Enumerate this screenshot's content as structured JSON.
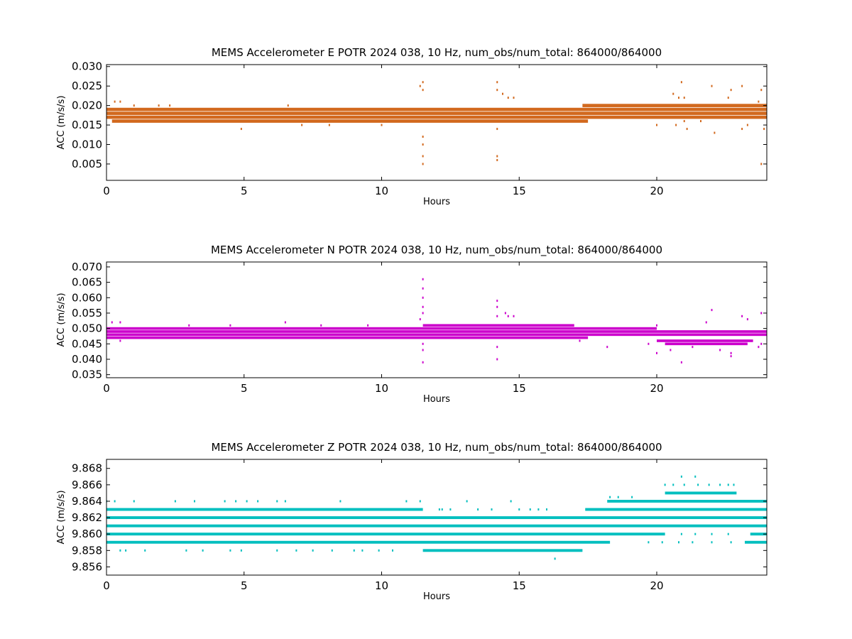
{
  "chart_data": [
    {
      "type": "scatter",
      "title": "MEMS Accelerometer E POTR 2024 038, 10 Hz, num_obs/num_total: 864000/864000",
      "xlabel": "Hours",
      "ylabel": "ACC (m/s/s)",
      "color": "#d2691e",
      "xlim": [
        0,
        24
      ],
      "ylim": [
        0.0008,
        0.0305
      ],
      "xticks": [
        0,
        5,
        10,
        15,
        20
      ],
      "yticks": [
        0.005,
        0.01,
        0.015,
        0.02,
        0.025,
        0.03
      ],
      "ytick_labels": [
        "0.005",
        "0.010",
        "0.015",
        "0.020",
        "0.025",
        "0.030"
      ],
      "grid": false,
      "bands": [
        {
          "y": 0.016,
          "x": [
            0.2,
            17.5
          ]
        },
        {
          "y": 0.017,
          "x": [
            0.0,
            24.0
          ]
        },
        {
          "y": 0.018,
          "x": [
            0.0,
            24.0
          ]
        },
        {
          "y": 0.019,
          "x": [
            0.0,
            24.0
          ]
        },
        {
          "y": 0.02,
          "x": [
            17.3,
            24.0
          ]
        }
      ],
      "points": [
        [
          0.3,
          0.021
        ],
        [
          0.5,
          0.021
        ],
        [
          1.0,
          0.02
        ],
        [
          1.9,
          0.02
        ],
        [
          2.3,
          0.02
        ],
        [
          4.9,
          0.014
        ],
        [
          6.6,
          0.02
        ],
        [
          7.1,
          0.015
        ],
        [
          8.1,
          0.015
        ],
        [
          10.0,
          0.015
        ],
        [
          11.4,
          0.025
        ],
        [
          11.5,
          0.026
        ],
        [
          11.5,
          0.024
        ],
        [
          11.5,
          0.012
        ],
        [
          11.5,
          0.01
        ],
        [
          11.5,
          0.007
        ],
        [
          11.5,
          0.005
        ],
        [
          14.2,
          0.026
        ],
        [
          14.2,
          0.024
        ],
        [
          14.2,
          0.014
        ],
        [
          14.2,
          0.007
        ],
        [
          14.2,
          0.006
        ],
        [
          14.4,
          0.023
        ],
        [
          14.6,
          0.022
        ],
        [
          14.8,
          0.022
        ],
        [
          20.6,
          0.023
        ],
        [
          20.8,
          0.022
        ],
        [
          20.9,
          0.026
        ],
        [
          21.0,
          0.022
        ],
        [
          21.0,
          0.016
        ],
        [
          21.1,
          0.014
        ],
        [
          21.6,
          0.016
        ],
        [
          22.0,
          0.025
        ],
        [
          22.1,
          0.013
        ],
        [
          22.6,
          0.022
        ],
        [
          22.7,
          0.024
        ],
        [
          23.1,
          0.025
        ],
        [
          23.1,
          0.014
        ],
        [
          23.7,
          0.021
        ],
        [
          23.8,
          0.024
        ],
        [
          23.8,
          0.005
        ],
        [
          23.9,
          0.014
        ],
        [
          20.0,
          0.015
        ],
        [
          20.7,
          0.015
        ],
        [
          23.3,
          0.015
        ]
      ]
    },
    {
      "type": "scatter",
      "title": "MEMS Accelerometer N POTR 2024 038, 10 Hz, num_obs/num_total: 864000/864000",
      "xlabel": "Hours",
      "ylabel": "ACC (m/s/s)",
      "color": "#cc00cc",
      "xlim": [
        0,
        24
      ],
      "ylim": [
        0.034,
        0.0716
      ],
      "xticks": [
        0,
        5,
        10,
        15,
        20
      ],
      "yticks": [
        0.035,
        0.04,
        0.045,
        0.05,
        0.055,
        0.06,
        0.065,
        0.07
      ],
      "ytick_labels": [
        "0.035",
        "0.040",
        "0.045",
        "0.050",
        "0.055",
        "0.060",
        "0.065",
        "0.070"
      ],
      "grid": false,
      "bands": [
        {
          "y": 0.047,
          "x": [
            0.0,
            17.5
          ]
        },
        {
          "y": 0.048,
          "x": [
            0.0,
            24.0
          ]
        },
        {
          "y": 0.049,
          "x": [
            0.0,
            24.0
          ]
        },
        {
          "y": 0.05,
          "x": [
            0.0,
            20.0
          ]
        },
        {
          "y": 0.051,
          "x": [
            11.5,
            17.0
          ]
        },
        {
          "y": 0.046,
          "x": [
            20.0,
            23.5
          ]
        },
        {
          "y": 0.045,
          "x": [
            20.3,
            23.3
          ]
        }
      ],
      "points": [
        [
          0.2,
          0.052
        ],
        [
          0.5,
          0.052
        ],
        [
          0.5,
          0.046
        ],
        [
          3.0,
          0.051
        ],
        [
          4.5,
          0.051
        ],
        [
          6.5,
          0.052
        ],
        [
          7.8,
          0.051
        ],
        [
          9.5,
          0.051
        ],
        [
          11.5,
          0.066
        ],
        [
          11.5,
          0.063
        ],
        [
          11.5,
          0.06
        ],
        [
          11.5,
          0.057
        ],
        [
          11.5,
          0.055
        ],
        [
          11.5,
          0.045
        ],
        [
          11.5,
          0.043
        ],
        [
          11.5,
          0.039
        ],
        [
          11.4,
          0.053
        ],
        [
          14.2,
          0.059
        ],
        [
          14.2,
          0.057
        ],
        [
          14.2,
          0.054
        ],
        [
          14.2,
          0.044
        ],
        [
          14.2,
          0.04
        ],
        [
          14.5,
          0.055
        ],
        [
          14.6,
          0.054
        ],
        [
          14.8,
          0.054
        ],
        [
          18.2,
          0.044
        ],
        [
          19.7,
          0.045
        ],
        [
          20.0,
          0.042
        ],
        [
          20.0,
          0.051
        ],
        [
          20.5,
          0.043
        ],
        [
          20.9,
          0.039
        ],
        [
          21.3,
          0.044
        ],
        [
          21.8,
          0.052
        ],
        [
          22.0,
          0.056
        ],
        [
          22.3,
          0.043
        ],
        [
          22.7,
          0.042
        ],
        [
          22.7,
          0.041
        ],
        [
          23.1,
          0.054
        ],
        [
          23.3,
          0.053
        ],
        [
          23.8,
          0.055
        ],
        [
          23.8,
          0.045
        ],
        [
          23.7,
          0.044
        ],
        [
          17.2,
          0.046
        ]
      ]
    },
    {
      "type": "scatter",
      "title": "MEMS Accelerometer Z POTR 2024 038, 10 Hz, num_obs/num_total: 864000/864000",
      "xlabel": "Hours",
      "ylabel": "ACC (m/s/s)",
      "color": "#00bfbf",
      "xlim": [
        0,
        24
      ],
      "ylim": [
        9.855,
        9.8691
      ],
      "xticks": [
        0,
        5,
        10,
        15,
        20
      ],
      "yticks": [
        9.856,
        9.858,
        9.86,
        9.862,
        9.864,
        9.866,
        9.868
      ],
      "ytick_labels": [
        "9.856",
        "9.858",
        "9.860",
        "9.862",
        "9.864",
        "9.866",
        "9.868"
      ],
      "grid": false,
      "bands": [
        {
          "y": 9.859,
          "x": [
            0.0,
            18.3
          ]
        },
        {
          "y": 9.86,
          "x": [
            0.0,
            20.3
          ]
        },
        {
          "y": 9.861,
          "x": [
            0.0,
            24.0
          ]
        },
        {
          "y": 9.862,
          "x": [
            0.0,
            24.0
          ]
        },
        {
          "y": 9.863,
          "x": [
            0.0,
            11.5
          ]
        },
        {
          "y": 9.863,
          "x": [
            17.4,
            24.0
          ]
        },
        {
          "y": 9.864,
          "x": [
            18.2,
            24.0
          ]
        },
        {
          "y": 9.858,
          "x": [
            11.5,
            17.3
          ]
        },
        {
          "y": 9.865,
          "x": [
            20.3,
            22.9
          ]
        },
        {
          "y": 9.859,
          "x": [
            23.2,
            24.0
          ]
        },
        {
          "y": 9.86,
          "x": [
            23.4,
            24.0
          ]
        }
      ],
      "points": [
        [
          0.0,
          9.864
        ],
        [
          0.3,
          9.864
        ],
        [
          0.5,
          9.858
        ],
        [
          0.7,
          9.858
        ],
        [
          1.0,
          9.864
        ],
        [
          1.4,
          9.858
        ],
        [
          2.5,
          9.864
        ],
        [
          3.2,
          9.864
        ],
        [
          2.9,
          9.858
        ],
        [
          3.5,
          9.858
        ],
        [
          4.3,
          9.864
        ],
        [
          4.7,
          9.864
        ],
        [
          4.5,
          9.858
        ],
        [
          4.9,
          9.858
        ],
        [
          5.1,
          9.864
        ],
        [
          5.5,
          9.864
        ],
        [
          6.2,
          9.864
        ],
        [
          6.5,
          9.864
        ],
        [
          6.2,
          9.858
        ],
        [
          6.9,
          9.858
        ],
        [
          7.5,
          9.858
        ],
        [
          8.2,
          9.858
        ],
        [
          8.5,
          9.864
        ],
        [
          9.0,
          9.858
        ],
        [
          9.3,
          9.858
        ],
        [
          9.9,
          9.858
        ],
        [
          10.4,
          9.858
        ],
        [
          10.9,
          9.864
        ],
        [
          11.4,
          9.864
        ],
        [
          12.1,
          9.863
        ],
        [
          12.2,
          9.863
        ],
        [
          12.5,
          9.863
        ],
        [
          13.1,
          9.864
        ],
        [
          13.5,
          9.863
        ],
        [
          14.0,
          9.863
        ],
        [
          14.7,
          9.864
        ],
        [
          15.0,
          9.863
        ],
        [
          15.4,
          9.863
        ],
        [
          15.7,
          9.863
        ],
        [
          16.0,
          9.863
        ],
        [
          16.3,
          9.857
        ],
        [
          18.3,
          9.8645
        ],
        [
          18.6,
          9.8645
        ],
        [
          19.1,
          9.8645
        ],
        [
          20.3,
          9.866
        ],
        [
          20.6,
          9.866
        ],
        [
          20.9,
          9.867
        ],
        [
          21.0,
          9.866
        ],
        [
          21.4,
          9.867
        ],
        [
          21.5,
          9.866
        ],
        [
          21.9,
          9.866
        ],
        [
          22.3,
          9.866
        ],
        [
          22.6,
          9.866
        ],
        [
          22.8,
          9.866
        ],
        [
          18.5,
          9.86
        ],
        [
          19.0,
          9.86
        ],
        [
          19.5,
          9.86
        ],
        [
          20.9,
          9.86
        ],
        [
          21.4,
          9.86
        ],
        [
          22.0,
          9.86
        ],
        [
          22.6,
          9.86
        ],
        [
          19.7,
          9.859
        ],
        [
          20.2,
          9.859
        ],
        [
          20.8,
          9.859
        ],
        [
          21.3,
          9.859
        ],
        [
          22.0,
          9.859
        ],
        [
          22.7,
          9.859
        ]
      ]
    }
  ]
}
